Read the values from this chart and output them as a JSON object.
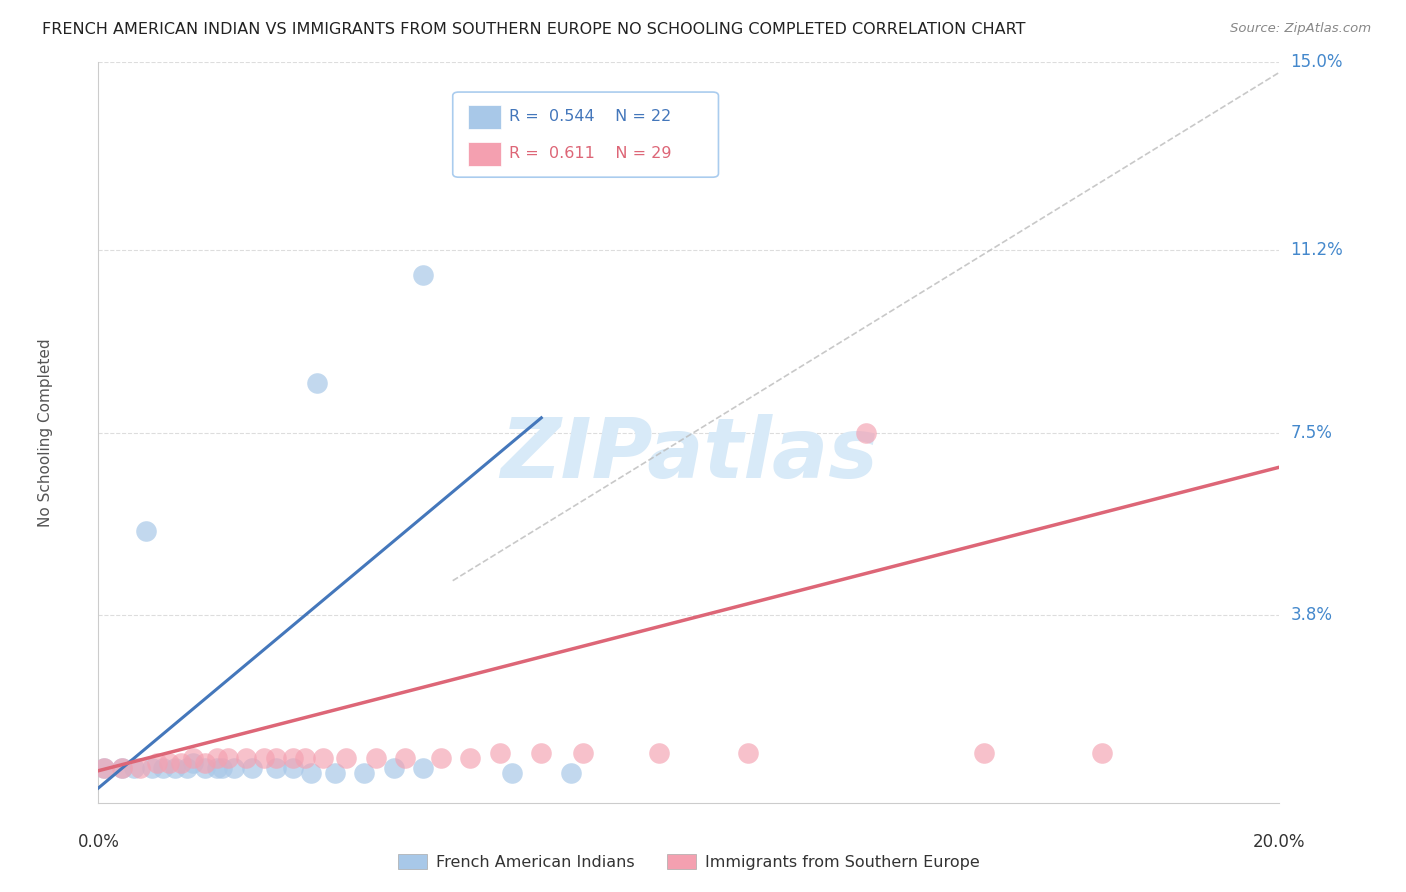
{
  "title": "FRENCH AMERICAN INDIAN VS IMMIGRANTS FROM SOUTHERN EUROPE NO SCHOOLING COMPLETED CORRELATION CHART",
  "source": "Source: ZipAtlas.com",
  "ylabel": "No Schooling Completed",
  "xlim": [
    0.0,
    0.2
  ],
  "ylim": [
    0.0,
    0.15
  ],
  "ytick_vals": [
    0.038,
    0.075,
    0.112,
    0.15
  ],
  "ytick_labels": [
    "3.8%",
    "7.5%",
    "11.2%",
    "15.0%"
  ],
  "legend_blue_r": "0.544",
  "legend_blue_n": "22",
  "legend_pink_r": "0.611",
  "legend_pink_n": "29",
  "blue_color": "#a8c8e8",
  "pink_color": "#f4a0b0",
  "blue_line_color": "#4477bb",
  "pink_line_color": "#dd6677",
  "dash_color": "#bbbbbb",
  "watermark_color": "#d8eaf8",
  "title_color": "#222222",
  "source_color": "#888888",
  "label_color": "#4488cc",
  "axis_label_color": "#555555",
  "grid_color": "#dddddd",
  "blue_points": [
    [
      0.001,
      0.007
    ],
    [
      0.004,
      0.007
    ],
    [
      0.006,
      0.007
    ],
    [
      0.009,
      0.007
    ],
    [
      0.011,
      0.007
    ],
    [
      0.013,
      0.007
    ],
    [
      0.015,
      0.007
    ],
    [
      0.016,
      0.008
    ],
    [
      0.018,
      0.007
    ],
    [
      0.02,
      0.007
    ],
    [
      0.021,
      0.007
    ],
    [
      0.023,
      0.007
    ],
    [
      0.026,
      0.007
    ],
    [
      0.03,
      0.007
    ],
    [
      0.033,
      0.007
    ],
    [
      0.036,
      0.006
    ],
    [
      0.04,
      0.006
    ],
    [
      0.045,
      0.006
    ],
    [
      0.05,
      0.007
    ],
    [
      0.055,
      0.007
    ],
    [
      0.07,
      0.006
    ],
    [
      0.08,
      0.006
    ]
  ],
  "blue_high_points": [
    [
      0.008,
      0.055
    ],
    [
      0.037,
      0.085
    ],
    [
      0.055,
      0.107
    ]
  ],
  "pink_points": [
    [
      0.001,
      0.007
    ],
    [
      0.004,
      0.007
    ],
    [
      0.007,
      0.007
    ],
    [
      0.01,
      0.008
    ],
    [
      0.012,
      0.008
    ],
    [
      0.014,
      0.008
    ],
    [
      0.016,
      0.009
    ],
    [
      0.018,
      0.008
    ],
    [
      0.02,
      0.009
    ],
    [
      0.022,
      0.009
    ],
    [
      0.025,
      0.009
    ],
    [
      0.028,
      0.009
    ],
    [
      0.03,
      0.009
    ],
    [
      0.033,
      0.009
    ],
    [
      0.035,
      0.009
    ],
    [
      0.038,
      0.009
    ],
    [
      0.042,
      0.009
    ],
    [
      0.047,
      0.009
    ],
    [
      0.052,
      0.009
    ],
    [
      0.058,
      0.009
    ],
    [
      0.063,
      0.009
    ],
    [
      0.068,
      0.01
    ],
    [
      0.075,
      0.01
    ],
    [
      0.082,
      0.01
    ],
    [
      0.095,
      0.01
    ],
    [
      0.11,
      0.01
    ],
    [
      0.13,
      0.075
    ],
    [
      0.15,
      0.01
    ],
    [
      0.17,
      0.01
    ]
  ],
  "blue_line": [
    [
      -0.005,
      -0.002
    ],
    [
      0.075,
      0.078
    ]
  ],
  "pink_line": [
    [
      0.0,
      0.0065
    ],
    [
      0.2,
      0.068
    ]
  ],
  "dash_line": [
    [
      0.06,
      0.045
    ],
    [
      0.2,
      0.148
    ]
  ]
}
